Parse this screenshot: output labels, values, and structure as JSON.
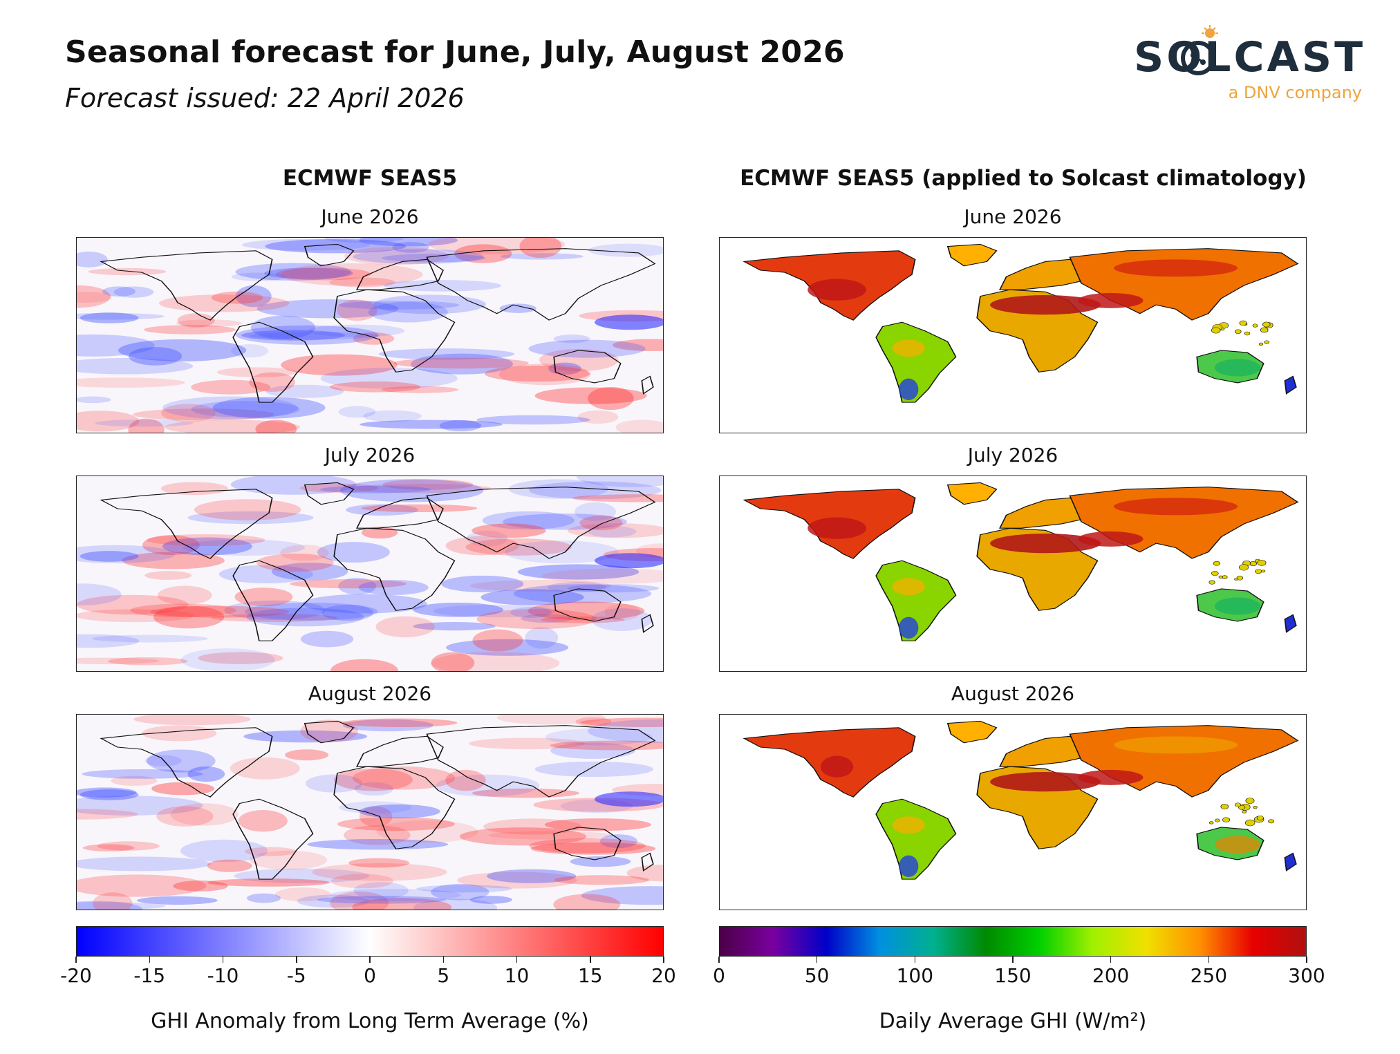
{
  "header": {
    "title": "Seasonal forecast for June, July, August 2026",
    "subtitle": "Forecast issued: 22 April 2026"
  },
  "logo": {
    "wordmark": "SOLCAST",
    "tagline": "a DNV company",
    "icon": "sun-globe-icon",
    "color": "#1f2e3c",
    "accent": "#f0a43a"
  },
  "columns": [
    {
      "title": "ECMWF SEAS5",
      "kind": "anomaly"
    },
    {
      "title": "ECMWF SEAS5 (applied to Solcast climatology)",
      "kind": "absolute"
    }
  ],
  "months": [
    "June 2026",
    "July 2026",
    "August 2026"
  ],
  "colorbars": {
    "anomaly": {
      "ticks": [
        "-20",
        "-15",
        "-10",
        "-5",
        "0",
        "5",
        "10",
        "15",
        "20"
      ],
      "range": [
        -20,
        20
      ],
      "label": "GHI Anomaly from Long Term Average (%)",
      "colors": [
        "#0000ff",
        "#ffffff",
        "#ff0000"
      ]
    },
    "absolute": {
      "ticks": [
        "0",
        "50",
        "100",
        "150",
        "200",
        "250",
        "300"
      ],
      "range": [
        0,
        300
      ],
      "label": "Daily Average GHI (W/m²)",
      "colors": [
        "#4b0046",
        "#7a00a0",
        "#0000c8",
        "#0090e0",
        "#00b090",
        "#008a00",
        "#00d000",
        "#a0f000",
        "#f0e000",
        "#ff9000",
        "#e80000",
        "#b01010"
      ]
    }
  }
}
